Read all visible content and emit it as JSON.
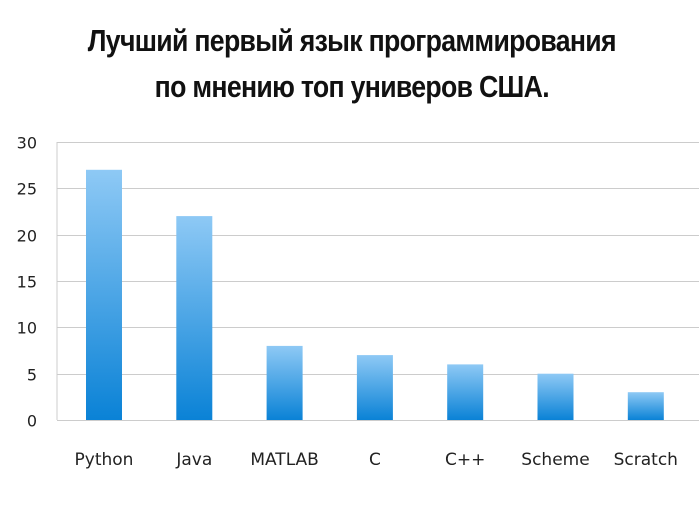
{
  "chart_data": {
    "type": "bar",
    "title_lines": [
      "Лучший первый язык программирования",
      "по мнению топ универов США."
    ],
    "categories": [
      "Python",
      "Java",
      "MATLAB",
      "C",
      "C++",
      "Scheme",
      "Scratch"
    ],
    "values": [
      27,
      22,
      8,
      7,
      6,
      5,
      3
    ],
    "yticks": [
      0,
      5,
      10,
      15,
      20,
      25,
      30
    ],
    "ylim": [
      0,
      30
    ],
    "xlabel": "",
    "ylabel": "",
    "grid": true,
    "legend": "none",
    "bar_color_top": "#8ec9f5",
    "bar_color_bottom": "#0a82d6",
    "grid_color": "#cccccc"
  }
}
